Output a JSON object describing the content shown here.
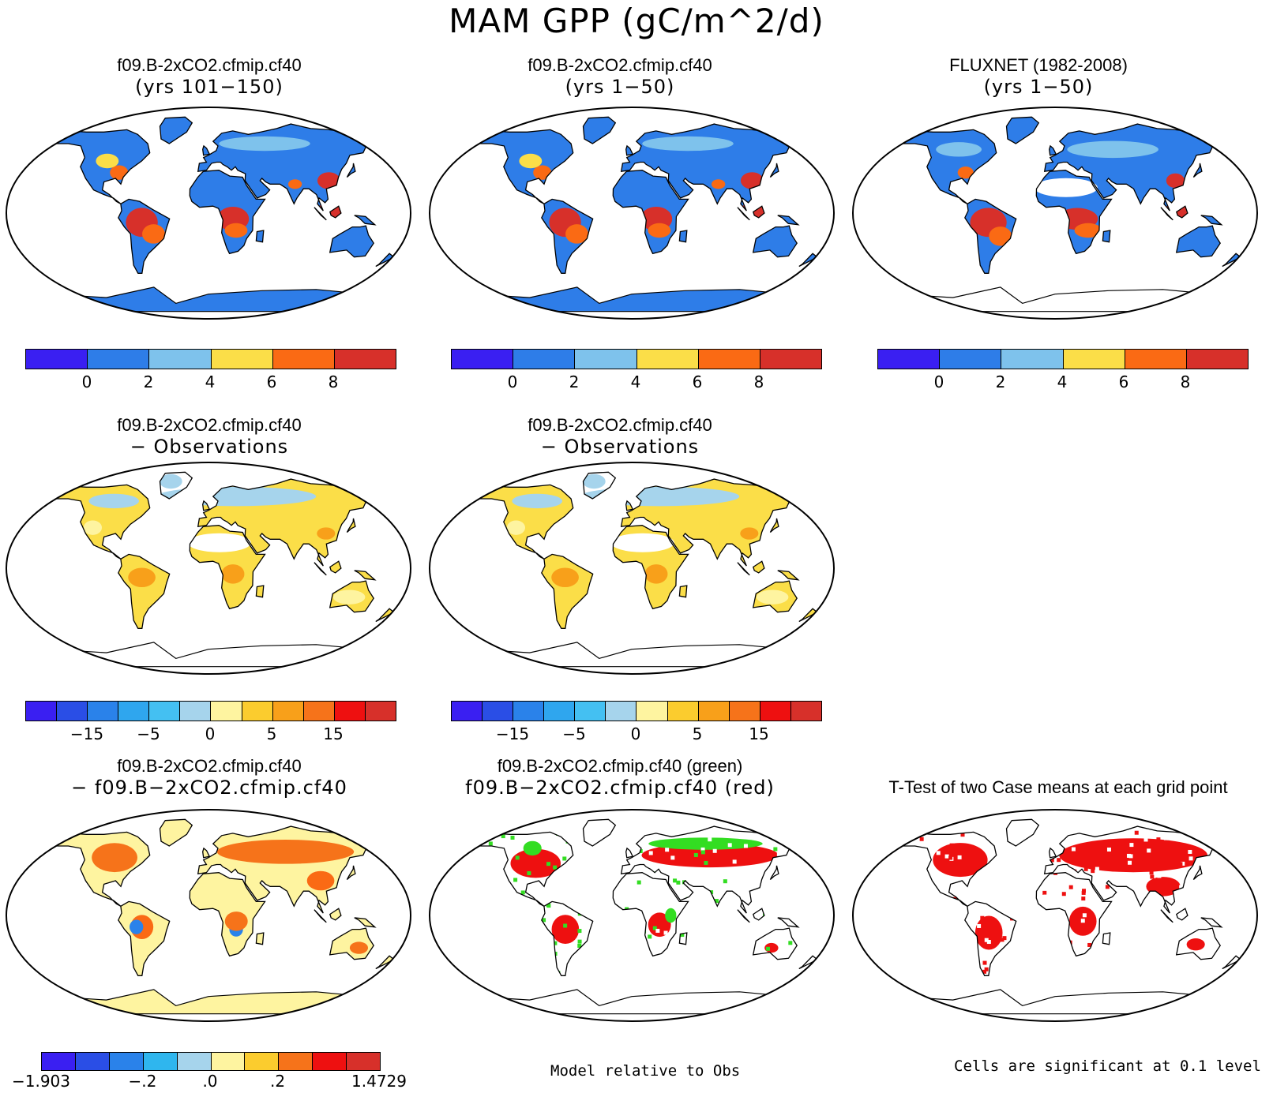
{
  "title": "MAM GPP (gC/m^2/d)",
  "panels": [
    {
      "line1": "f09.B-2xCO2.cfmip.cf40",
      "line2": "(yrs 101−150)",
      "kind": "abs",
      "antarctica": "fill"
    },
    {
      "line1": "f09.B-2xCO2.cfmip.cf40",
      "line2": "(yrs 1−50)",
      "kind": "abs",
      "antarctica": "fill"
    },
    {
      "line1": "FLUXNET (1982-2008)",
      "line2": "(yrs 1−50)",
      "kind": "obs",
      "antarctica": "none"
    },
    {
      "line1": "f09.B-2xCO2.cfmip.cf40",
      "line2": "− Observations",
      "kind": "diff",
      "antarctica": "none"
    },
    {
      "line1": "f09.B-2xCO2.cfmip.cf40",
      "line2": "− Observations",
      "kind": "diff",
      "antarctica": "none"
    },
    {
      "line1": "f09.B-2xCO2.cfmip.cf40",
      "line2": "− f09.B−2xCO2.cfmip.cf40",
      "kind": "cdiff",
      "antarctica": "yellow"
    },
    {
      "line1": "f09.B-2xCO2.cfmip.cf40 (green)",
      "line2": "f09.B−2xCO2.cfmip.cf40 (red)",
      "kind": "green",
      "antarctica": "none"
    },
    {
      "line1": "",
      "line2": "T-Test of two Case means at each grid point",
      "kind": "ttest",
      "antarctica": "none"
    }
  ],
  "colorbars": {
    "abs": {
      "colors": [
        "#3a1ff2",
        "#2e7de8",
        "#7ec2ec",
        "#fbde48",
        "#fa6a14",
        "#d7302a"
      ],
      "ticks": [
        "0",
        "2",
        "4",
        "6",
        "8"
      ]
    },
    "diff": {
      "colors": [
        "#3a1ff2",
        "#2a4ee6",
        "#2a82ea",
        "#2fa6ee",
        "#44c0f2",
        "#a6d4ec",
        "#fef4a0",
        "#fbcc2e",
        "#f8a01a",
        "#f6731a",
        "#ee1010",
        "#d7302a"
      ],
      "ticks": [
        "−15",
        "−5",
        "0",
        "5",
        "15"
      ]
    },
    "cdiff": {
      "colors": [
        "#3a1ff2",
        "#2a4ee6",
        "#2a82ea",
        "#2fb6ee",
        "#a6d4ec",
        "#fef4a0",
        "#fbcc2e",
        "#f6731a",
        "#ee1010",
        "#d7302a"
      ],
      "ticks": [
        "−1.903",
        "−.2",
        ".0",
        ".2",
        "1.4729"
      ]
    }
  },
  "footnotes": {
    "middle": "Model relative to Obs",
    "right": "Cells are significant at 0.1 level"
  },
  "legend_words": {
    "model_case": "green",
    "second_case": "red"
  }
}
